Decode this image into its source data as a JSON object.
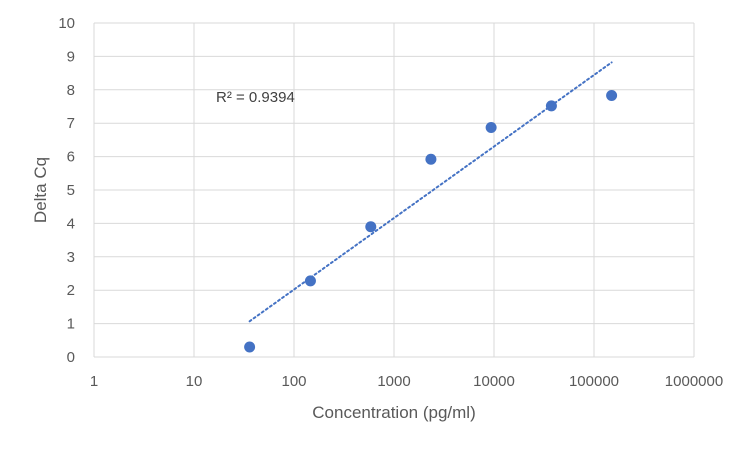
{
  "chart_data": {
    "type": "scatter",
    "title": "",
    "xlabel": "Concentration (pg/ml)",
    "ylabel": "Delta Cq",
    "x_scale": "log",
    "xlim": [
      1,
      1000000
    ],
    "ylim": [
      0,
      10
    ],
    "x_ticks": [
      1,
      10,
      100,
      1000,
      10000,
      100000,
      1000000
    ],
    "x_tick_labels": [
      "1",
      "10",
      "100",
      "1000",
      "10000",
      "100000",
      "1000000"
    ],
    "y_ticks": [
      0,
      1,
      2,
      3,
      4,
      5,
      6,
      7,
      8,
      9,
      10
    ],
    "y_tick_labels": [
      "0",
      "1",
      "2",
      "3",
      "4",
      "5",
      "6",
      "7",
      "8",
      "9",
      "10"
    ],
    "grid": true,
    "series": [
      {
        "name": "Delta Cq",
        "color": "#4472C4",
        "points": [
          {
            "x": 36,
            "y": 0.3
          },
          {
            "x": 146,
            "y": 2.28
          },
          {
            "x": 586,
            "y": 3.9
          },
          {
            "x": 2340,
            "y": 5.92
          },
          {
            "x": 9360,
            "y": 6.87
          },
          {
            "x": 37500,
            "y": 7.52
          },
          {
            "x": 150000,
            "y": 7.83
          }
        ]
      }
    ],
    "trendline": {
      "type": "logarithmic",
      "style": "dotted",
      "color": "#4472C4",
      "from": {
        "x": 36,
        "y": 1.07
      },
      "to": {
        "x": 150000,
        "y": 8.82
      }
    },
    "annotations": [
      {
        "text": "R² = 0.9394"
      }
    ]
  }
}
